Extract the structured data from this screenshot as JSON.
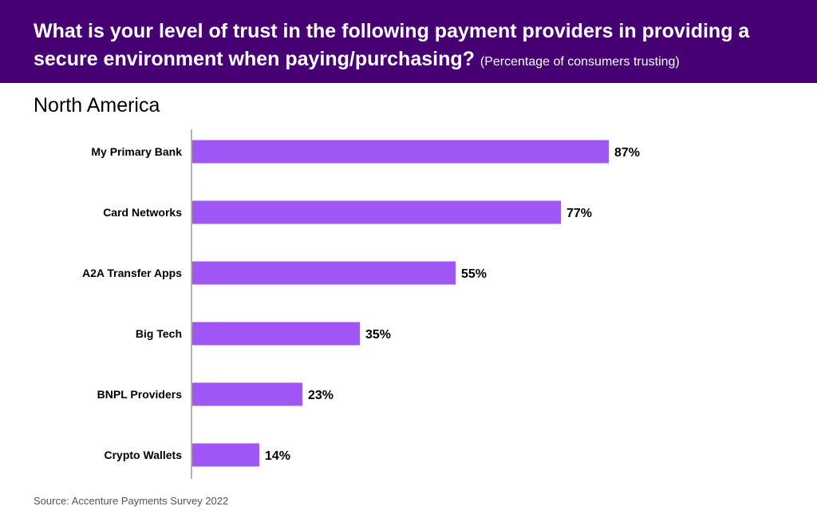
{
  "header": {
    "title": "What is your level of trust in the following payment providers in providing a secure environment when paying/purchasing?",
    "subtitle": "(Percentage of consumers trusting)"
  },
  "region": "North America",
  "source": "Source: Accenture Payments Survey 2022",
  "colors": {
    "header_bg": "#460073",
    "bar": "#A055F5",
    "axis": "#999999"
  },
  "chart_data": {
    "type": "bar",
    "orientation": "horizontal",
    "categories": [
      "My Primary Bank",
      "Card Networks",
      "A2A Transfer Apps",
      "Big Tech",
      "BNPL Providers",
      "Crypto Wallets"
    ],
    "values": [
      87,
      77,
      55,
      35,
      23,
      14
    ],
    "value_labels": [
      "87%",
      "77%",
      "55%",
      "35%",
      "23%",
      "14%"
    ],
    "xlim": [
      0,
      100
    ],
    "grid": false
  }
}
